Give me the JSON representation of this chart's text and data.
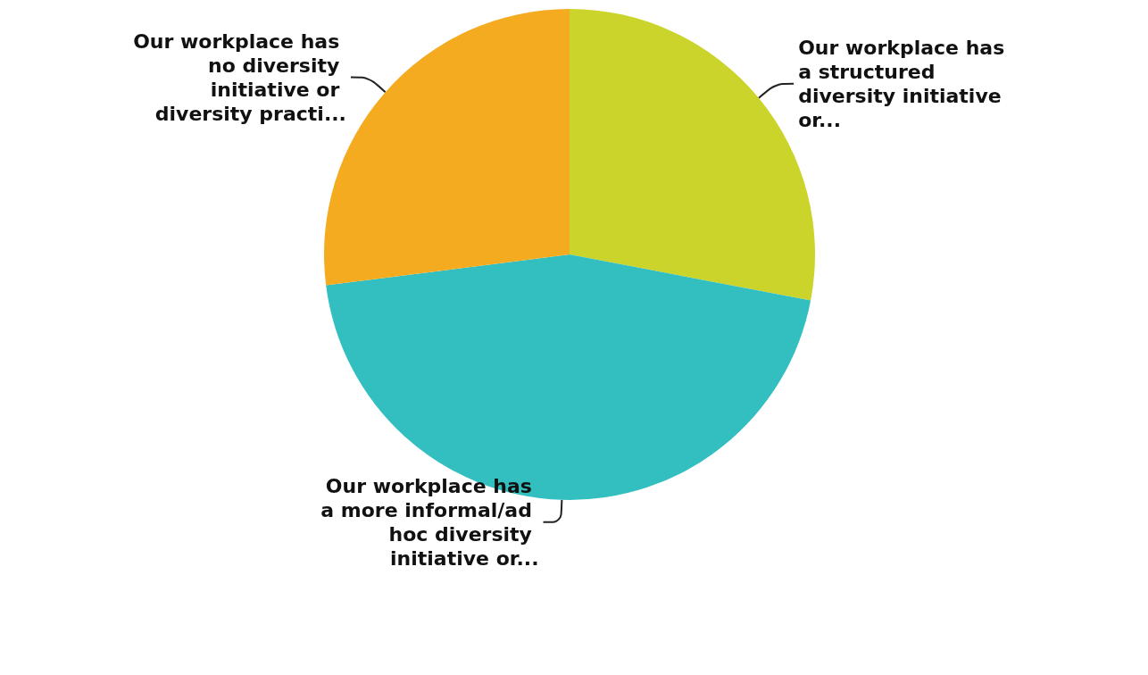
{
  "chart_data": {
    "type": "pie",
    "categories": [
      "Our workplace has a structured diversity initiative or...",
      "Our workplace has a more informal/ad hoc diversity initiative or...",
      "Our workplace has no diversity initiative or diversity practi..."
    ],
    "values": [
      28,
      45,
      27
    ],
    "colors": [
      "#cbd42a",
      "#33bec0",
      "#f5ab1f"
    ]
  }
}
